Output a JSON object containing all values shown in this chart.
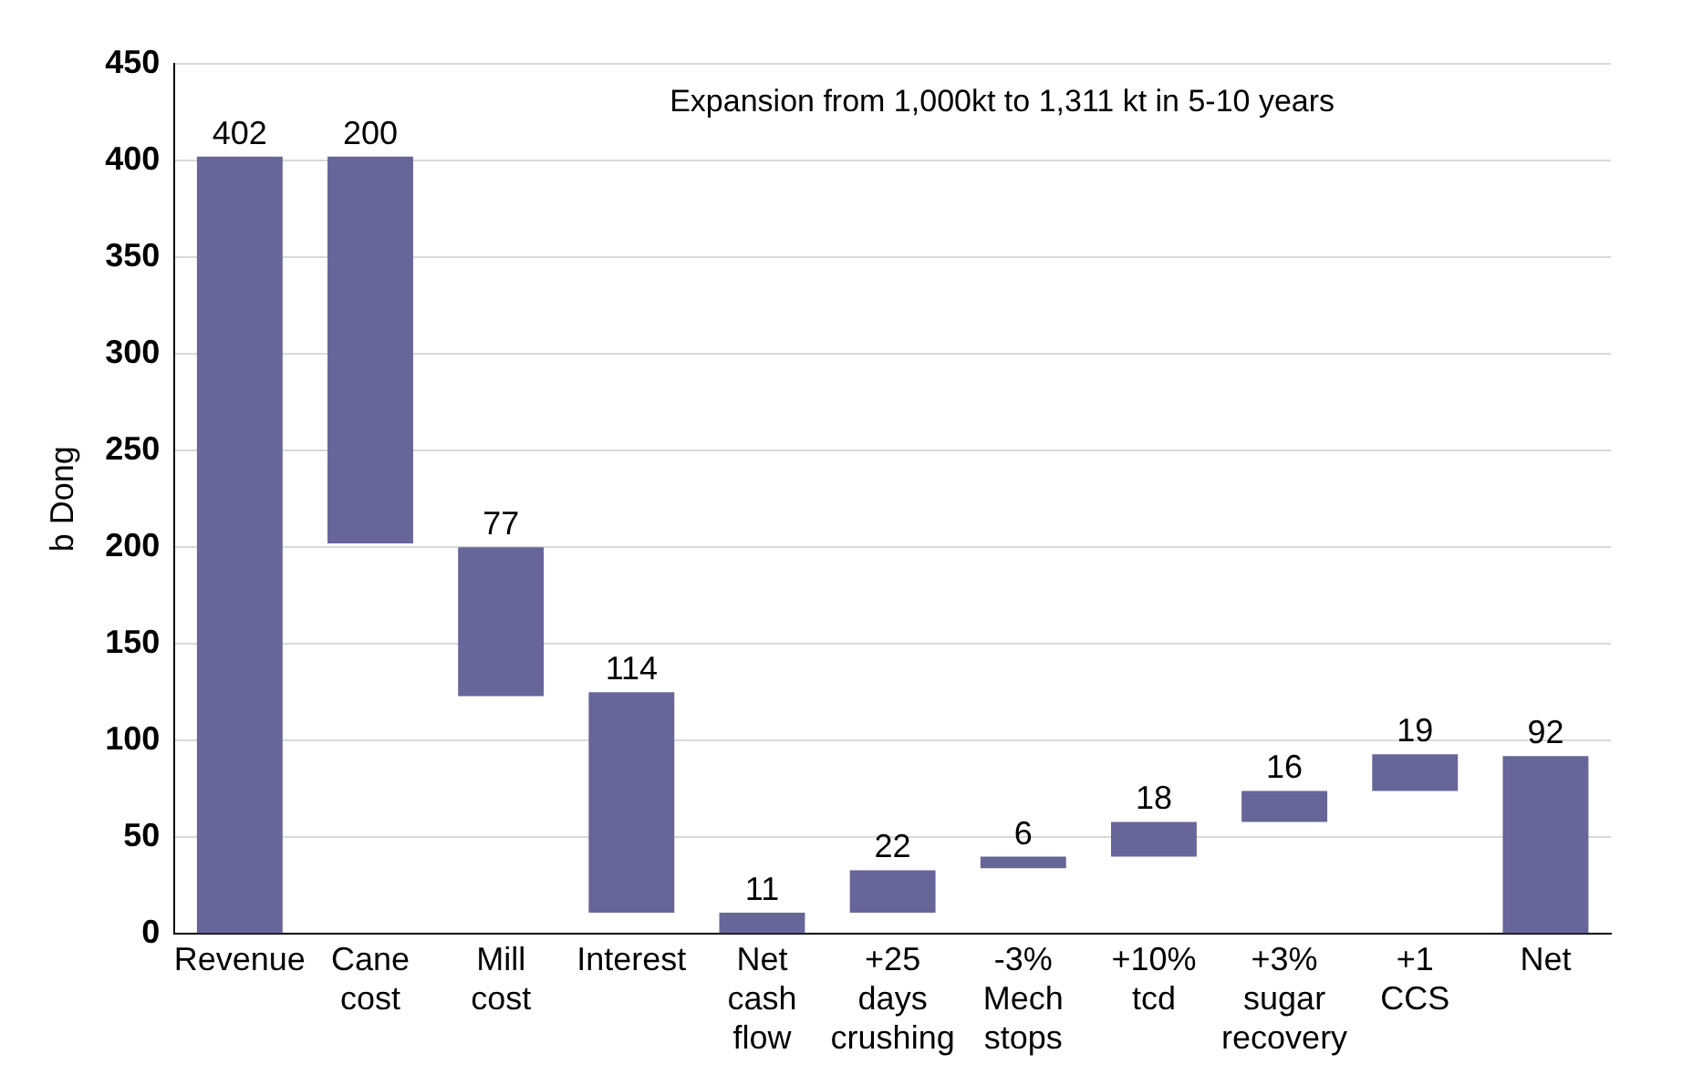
{
  "chart_data": {
    "type": "bar",
    "ylabel": "b Dong",
    "annotations": [
      "Expansion from 1,000kt to 1,311 kt in 5-10 years"
    ],
    "categories": [
      "Revenue",
      "Cane cost",
      "Mill cost",
      "Interest",
      "Net cash flow",
      "+25 days crushing",
      "-3% Mech stops",
      "+10% tcd",
      "+3% sugar recovery",
      "+1 CCS",
      "Net"
    ],
    "values": [
      402,
      200,
      77,
      114,
      11,
      22,
      6,
      18,
      16,
      19,
      92
    ],
    "base": [
      0,
      202,
      123,
      11,
      0,
      11,
      34,
      40,
      58,
      74,
      0
    ],
    "color": "#666699",
    "ylim": [
      0,
      450
    ],
    "yticks": [
      0,
      50,
      100,
      150,
      200,
      250,
      300,
      350,
      400,
      450
    ],
    "grid": "y",
    "data_labels": true,
    "legend": false
  }
}
